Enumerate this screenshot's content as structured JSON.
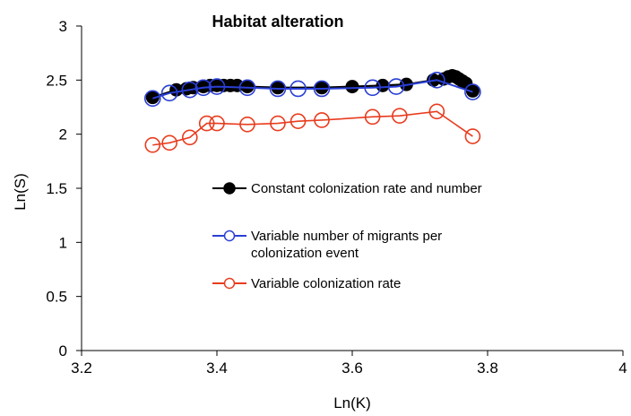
{
  "chart_data": {
    "type": "scatter",
    "title": "Habitat alteration",
    "xlabel": "Ln(K)",
    "ylabel": "Ln(S)",
    "xlim": [
      3.2,
      4
    ],
    "ylim": [
      0,
      3
    ],
    "x_ticks": [
      "3.2",
      "3.4",
      "3.6",
      "3.8",
      "4"
    ],
    "y_ticks": [
      "0",
      "0.5",
      "1",
      "1.5",
      "2",
      "2.5",
      "3"
    ],
    "grid": false,
    "legend_position": "center",
    "series": [
      {
        "name": "Constant colonization rate and number",
        "color": "#000000",
        "marker": "filled-circle",
        "x": [
          3.305,
          3.34,
          3.355,
          3.365,
          3.38,
          3.39,
          3.4,
          3.41,
          3.42,
          3.43,
          3.445,
          3.49,
          3.555,
          3.6,
          3.645,
          3.68,
          3.72,
          3.735,
          3.742,
          3.748,
          3.753,
          3.758,
          3.763,
          3.768,
          3.778
        ],
        "y": [
          2.34,
          2.41,
          2.42,
          2.43,
          2.44,
          2.45,
          2.45,
          2.45,
          2.45,
          2.45,
          2.44,
          2.43,
          2.43,
          2.44,
          2.45,
          2.46,
          2.5,
          2.51,
          2.53,
          2.54,
          2.53,
          2.51,
          2.49,
          2.47,
          2.4
        ]
      },
      {
        "name": "Variable number of migrants per colonization event",
        "color": "#2a3fd4",
        "marker": "open-circle",
        "x": [
          3.305,
          3.33,
          3.36,
          3.38,
          3.4,
          3.445,
          3.49,
          3.52,
          3.555,
          3.63,
          3.665,
          3.725,
          3.778
        ],
        "y": [
          2.33,
          2.38,
          2.41,
          2.43,
          2.44,
          2.43,
          2.42,
          2.42,
          2.42,
          2.43,
          2.44,
          2.5,
          2.39
        ]
      },
      {
        "name": "Variable colonization rate",
        "color": "#e83c1e",
        "marker": "open-circle",
        "x": [
          3.305,
          3.33,
          3.36,
          3.385,
          3.4,
          3.445,
          3.49,
          3.52,
          3.555,
          3.63,
          3.67,
          3.725,
          3.778
        ],
        "y": [
          1.9,
          1.92,
          1.97,
          2.1,
          2.1,
          2.09,
          2.1,
          2.12,
          2.13,
          2.16,
          2.17,
          2.21,
          1.98
        ]
      }
    ],
    "legend": [
      {
        "label": "Constant colonization rate and number",
        "series": 0
      },
      {
        "label": "Variable number of migrants per\ncolonization event",
        "series": 1
      },
      {
        "label": "Variable colonization rate",
        "series": 2
      }
    ]
  }
}
